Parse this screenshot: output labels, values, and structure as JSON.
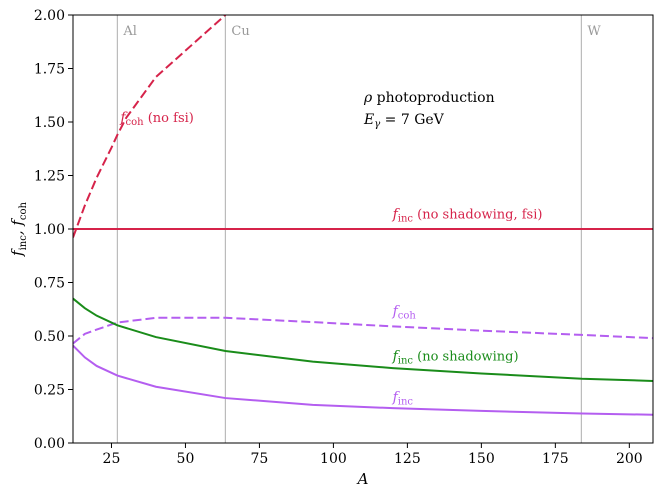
{
  "chart_data": {
    "type": "line",
    "xlabel": "A",
    "ylabel": "f_inc, f_coh",
    "xlim": [
      12,
      208
    ],
    "ylim": [
      0,
      2
    ],
    "x_ticks": [
      {
        "value": 25,
        "label": "25"
      },
      {
        "value": 50,
        "label": "50"
      },
      {
        "value": 75,
        "label": "75"
      },
      {
        "value": 100,
        "label": "100"
      },
      {
        "value": 125,
        "label": "125"
      },
      {
        "value": 150,
        "label": "150"
      },
      {
        "value": 175,
        "label": "175"
      },
      {
        "value": 200,
        "label": "200"
      }
    ],
    "y_ticks": [
      {
        "value": 0.0,
        "label": "0.00"
      },
      {
        "value": 0.25,
        "label": "0.25"
      },
      {
        "value": 0.5,
        "label": "0.50"
      },
      {
        "value": 0.75,
        "label": "0.75"
      },
      {
        "value": 1.0,
        "label": "1.00"
      },
      {
        "value": 1.25,
        "label": "1.25"
      },
      {
        "value": 1.5,
        "label": "1.50"
      },
      {
        "value": 1.75,
        "label": "1.75"
      },
      {
        "value": 2.0,
        "label": "2.00"
      }
    ],
    "grid": false,
    "reference_lines": [
      {
        "x": 27,
        "label": "Al",
        "color": "#bbbbbb"
      },
      {
        "x": 63.5,
        "label": "Cu",
        "color": "#bbbbbb"
      },
      {
        "x": 183.8,
        "label": "W",
        "color": "#bbbbbb"
      }
    ],
    "info_text": [
      "ρ photoproduction",
      "Eγ = 7 GeV"
    ],
    "series": [
      {
        "key": "coh_nofsi",
        "color": "#d6234a",
        "dash": "dashed",
        "annotation": {
          "main": "f",
          "sub": "coh",
          "suffix": " (no fsi)",
          "x": 28,
          "y": 1.5
        },
        "x": [
          12,
          16,
          20,
          25,
          27,
          30,
          40,
          63.5
        ],
        "y": [
          0.96,
          1.11,
          1.24,
          1.38,
          1.44,
          1.52,
          1.71,
          2.0
        ]
      },
      {
        "key": "inc_noshadow_fsi",
        "color": "#d6234a",
        "dash": "solid",
        "annotation": {
          "main": "f",
          "sub": "inc",
          "suffix": " (no shadowing, fsi)",
          "x": 120,
          "y": 1.05
        },
        "x": [
          12,
          208
        ],
        "y": [
          1.0,
          1.0
        ]
      },
      {
        "key": "coh",
        "color": "#b45ef0",
        "dash": "dashed",
        "annotation": {
          "main": "f",
          "sub": "coh",
          "suffix": "",
          "x": 120,
          "y": 0.595
        },
        "x": [
          12,
          16,
          20,
          27,
          40,
          63.5,
          93,
          120,
          150,
          184,
          208
        ],
        "y": [
          0.465,
          0.51,
          0.53,
          0.563,
          0.585,
          0.585,
          0.565,
          0.545,
          0.525,
          0.505,
          0.49
        ]
      },
      {
        "key": "inc_noshadow",
        "color": "#1a8c1a",
        "dash": "solid",
        "annotation": {
          "main": "f",
          "sub": "inc",
          "suffix": " (no shadowing)",
          "x": 120,
          "y": 0.385
        },
        "x": [
          12,
          16,
          20,
          27,
          40,
          63.5,
          93,
          120,
          150,
          184,
          208
        ],
        "y": [
          0.675,
          0.63,
          0.595,
          0.55,
          0.495,
          0.43,
          0.38,
          0.35,
          0.325,
          0.3,
          0.29
        ]
      },
      {
        "key": "inc",
        "color": "#b45ef0",
        "dash": "solid",
        "annotation": {
          "main": "f",
          "sub": "inc",
          "suffix": "",
          "x": 120,
          "y": 0.195
        },
        "x": [
          12,
          16,
          20,
          27,
          40,
          63.5,
          93,
          120,
          150,
          184,
          208
        ],
        "y": [
          0.455,
          0.4,
          0.36,
          0.315,
          0.263,
          0.21,
          0.178,
          0.163,
          0.15,
          0.138,
          0.132
        ]
      }
    ]
  }
}
